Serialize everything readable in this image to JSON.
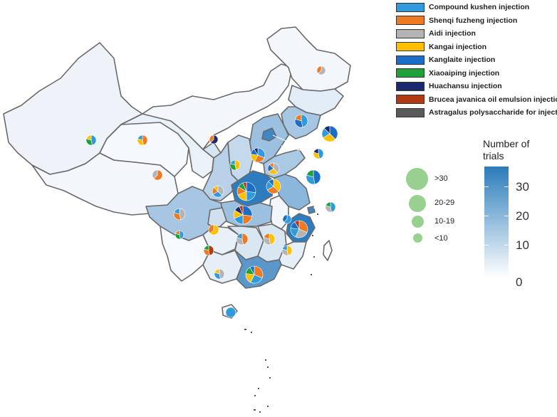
{
  "legend": {
    "items": [
      {
        "label": "Compound kushen injection",
        "color": "#2f9bdc"
      },
      {
        "label": "Shenqi fuzheng injection",
        "color": "#f07a22"
      },
      {
        "label": "Aidi injection",
        "color": "#b4b4b4"
      },
      {
        "label": "Kangai injection",
        "color": "#ffc000"
      },
      {
        "label": "Kanglaite injection",
        "color": "#1a6ec7"
      },
      {
        "label": "Xiaoaiping injection",
        "color": "#1ea03a"
      },
      {
        "label": "Huachansu injection",
        "color": "#1a2a6c"
      },
      {
        "label": "Brucea javanica oil emulsion injection",
        "color": "#b23a12"
      },
      {
        "label": "Astragalus polysaccharide for injection",
        "color": "#5a5a5a"
      }
    ]
  },
  "colorbar": {
    "title": "Number of trials",
    "ticks": [
      "30",
      "20",
      "10",
      "0"
    ],
    "range": [
      0,
      38
    ],
    "color_low": "#ffffff",
    "color_high": "#2b7bb9"
  },
  "size_legend": {
    "bins": [
      ">30",
      "20-29",
      "10-19",
      "<10"
    ],
    "color": "#98d090"
  }
}
